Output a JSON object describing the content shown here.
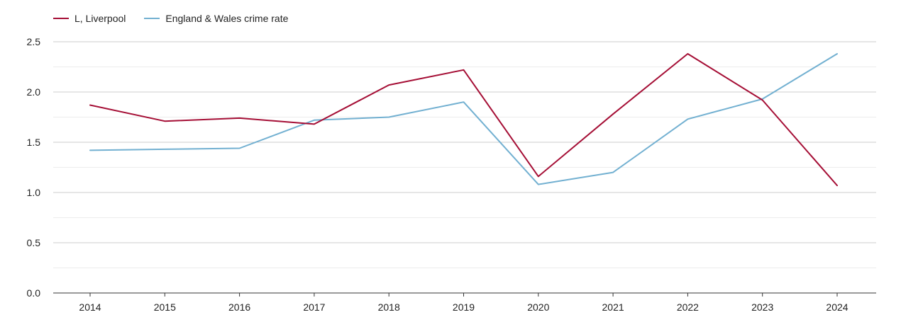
{
  "chart_data": {
    "type": "line",
    "title": "",
    "xlabel": "",
    "ylabel": "",
    "x": [
      "2014",
      "2015",
      "2016",
      "2017",
      "2018",
      "2019",
      "2020",
      "2021",
      "2022",
      "2023",
      "2024"
    ],
    "ylim": [
      0,
      2.5
    ],
    "y_ticks": [
      "0.0",
      "0.5",
      "1.0",
      "1.5",
      "2.0",
      "2.5"
    ],
    "grid": true,
    "legend_position": "top-left",
    "series": [
      {
        "name": "L, Liverpool",
        "color": "#a50e35",
        "values": [
          1.87,
          1.71,
          1.74,
          1.68,
          2.07,
          2.22,
          1.16,
          1.78,
          2.38,
          1.92,
          1.07
        ]
      },
      {
        "name": "England & Wales crime rate",
        "color": "#72b0d1",
        "values": [
          1.42,
          1.43,
          1.44,
          1.72,
          1.75,
          1.9,
          1.08,
          1.2,
          1.73,
          1.93,
          2.38
        ]
      }
    ]
  }
}
